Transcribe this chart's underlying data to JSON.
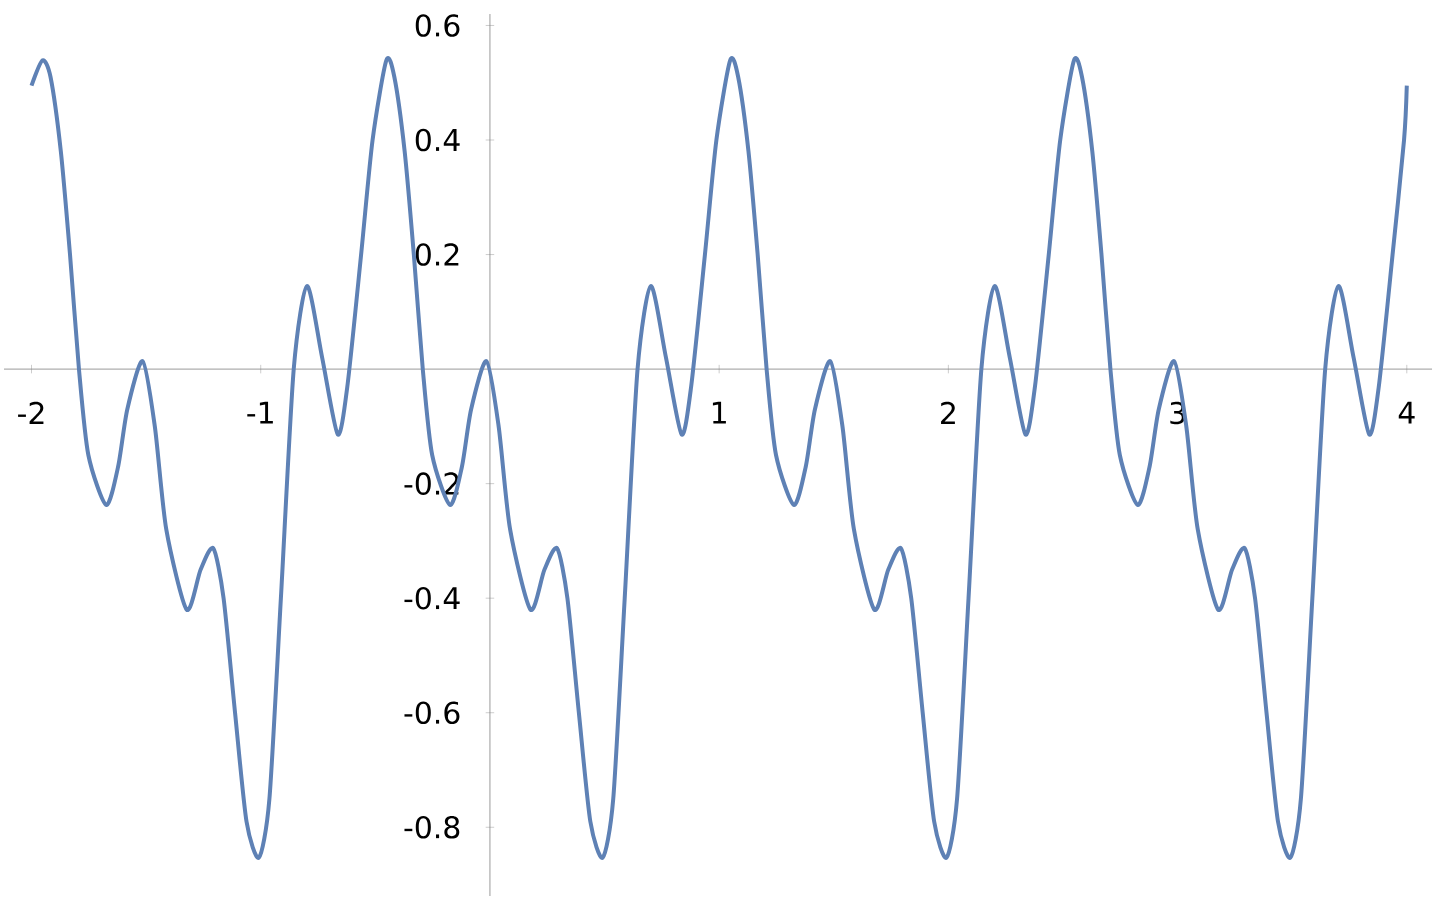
{
  "chart_data": {
    "type": "line",
    "color": "#5e81b5",
    "xlim": [
      -2.12,
      4.11
    ],
    "ylim": [
      -0.92,
      0.62
    ],
    "xticks": [
      -2,
      -1,
      1,
      2,
      3,
      4
    ],
    "yticks": [
      -0.8,
      -0.6,
      -0.4,
      -0.2,
      0.2,
      0.4,
      0.6
    ],
    "x": [
      -2,
      -1.952,
      -1.917,
      -1.872,
      -1.832,
      -1.793,
      -1.752,
      -1.674,
      -1.622,
      -1.582,
      -1.515,
      -1.462,
      -1.412,
      -1.323,
      -1.262,
      -1.207,
      -1.162,
      -1.112,
      -1.062,
      -1.008,
      -0.962,
      -0.912,
      -0.856,
      -0.798,
      -0.732,
      -0.664,
      -0.622,
      -0.562,
      -0.512,
      -0.452,
      -0.417,
      -0.372,
      -0.332,
      -0.293,
      -0.252,
      -0.174,
      -0.122,
      -0.082,
      -0.015,
      0.038,
      0.088,
      0.177,
      0.238,
      0.293,
      0.338,
      0.388,
      0.438,
      0.492,
      0.538,
      0.588,
      0.644,
      0.702,
      0.768,
      0.836,
      0.878,
      0.938,
      0.988,
      1.048,
      1.083,
      1.128,
      1.168,
      1.207,
      1.248,
      1.326,
      1.378,
      1.418,
      1.485,
      1.538,
      1.588,
      1.677,
      1.738,
      1.793,
      1.838,
      1.888,
      1.938,
      1.992,
      2.038,
      2.088,
      2.144,
      2.202,
      2.268,
      2.336,
      2.378,
      2.438,
      2.488,
      2.548,
      2.583,
      2.628,
      2.668,
      2.707,
      2.748,
      2.826,
      2.878,
      2.918,
      2.985,
      3.038,
      3.088,
      3.177,
      3.238,
      3.293,
      3.338,
      3.388,
      3.438,
      3.492,
      3.538,
      3.588,
      3.644,
      3.702,
      3.768,
      3.836,
      3.878,
      3.938,
      3.988,
      4
    ],
    "values": [
      0.495,
      0.539,
      0.51,
      0.38,
      0.2,
      0,
      -0.15,
      -0.237,
      -0.17,
      -0.07,
      0.014,
      -0.1,
      -0.28,
      -0.42,
      -0.35,
      -0.313,
      -0.4,
      -0.6,
      -0.79,
      -0.853,
      -0.75,
      -0.4,
      0,
      0.145,
      0.02,
      -0.114,
      -0.03,
      0.2,
      0.4,
      0.539,
      0.51,
      0.38,
      0.2,
      0,
      -0.15,
      -0.237,
      -0.17,
      -0.07,
      0.014,
      -0.1,
      -0.28,
      -0.42,
      -0.35,
      -0.313,
      -0.4,
      -0.6,
      -0.79,
      -0.853,
      -0.75,
      -0.4,
      0,
      0.145,
      0.02,
      -0.114,
      -0.03,
      0.2,
      0.4,
      0.539,
      0.51,
      0.38,
      0.2,
      0,
      -0.15,
      -0.237,
      -0.17,
      -0.07,
      0.014,
      -0.1,
      -0.28,
      -0.42,
      -0.35,
      -0.313,
      -0.4,
      -0.6,
      -0.79,
      -0.853,
      -0.75,
      -0.4,
      0,
      0.145,
      0.02,
      -0.114,
      -0.03,
      0.2,
      0.4,
      0.539,
      0.51,
      0.38,
      0.2,
      0,
      -0.15,
      -0.237,
      -0.17,
      -0.07,
      0.014,
      -0.1,
      -0.28,
      -0.42,
      -0.35,
      -0.313,
      -0.4,
      -0.6,
      -0.79,
      -0.853,
      -0.75,
      -0.4,
      0,
      0.145,
      0.02,
      -0.114,
      -0.03,
      0.2,
      0.4,
      0.495
    ]
  }
}
